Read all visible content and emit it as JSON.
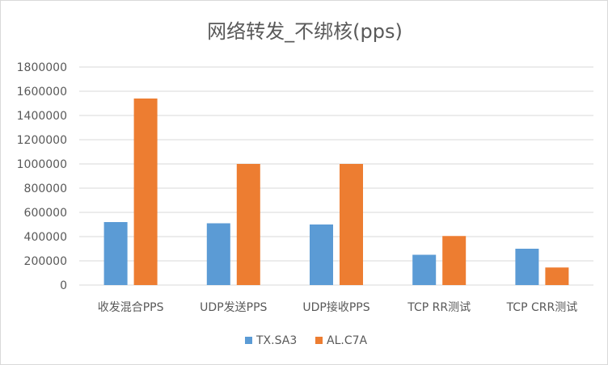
{
  "chart_data": {
    "type": "bar",
    "title": "网络转发_不绑核(pps)",
    "xlabel": "",
    "ylabel": "",
    "categories": [
      "收发混合PPS",
      "UDP发送PPS",
      "UDP接收PPS",
      "TCP RR测试",
      "TCP CRR测试"
    ],
    "series": [
      {
        "name": "TX.SA3",
        "color": "#5B9BD5",
        "values": [
          520000,
          510000,
          500000,
          250000,
          300000
        ]
      },
      {
        "name": "AL.C7A",
        "color": "#ED7D31",
        "values": [
          1540000,
          1000000,
          1000000,
          405000,
          145000
        ]
      }
    ],
    "ylim": [
      0,
      1800000
    ],
    "yticks": [
      "0",
      "200000",
      "400000",
      "600000",
      "800000",
      "1000000",
      "1200000",
      "1400000",
      "1600000",
      "1800000"
    ],
    "grid": true,
    "legend": "bottom"
  }
}
